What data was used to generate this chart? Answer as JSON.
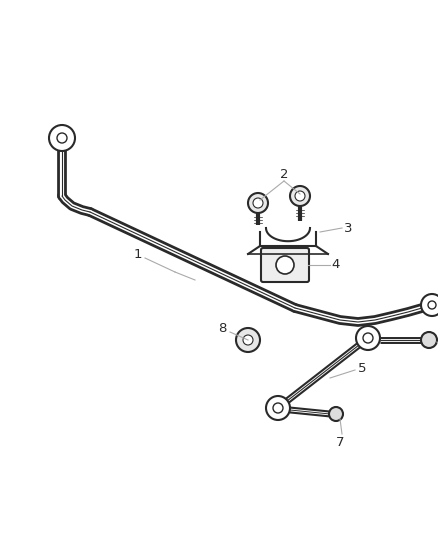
{
  "bg_color": "#ffffff",
  "line_color": "#2a2a2a",
  "leader_color": "#aaaaaa",
  "label_color": "#2a2a2a",
  "bar_lw_outer": 7,
  "bar_lw_inner": 3,
  "figsize": [
    4.38,
    5.33
  ],
  "dpi": 100
}
